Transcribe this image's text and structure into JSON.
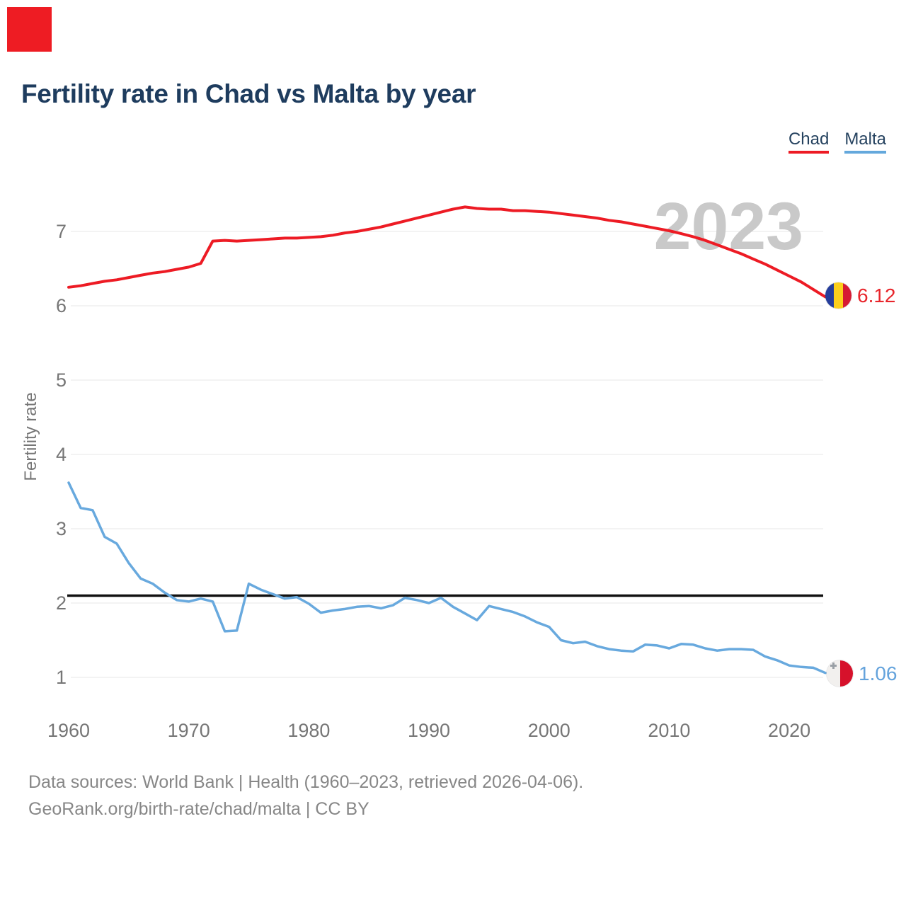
{
  "corner_marker": {
    "color": "#ee1c23"
  },
  "header": {
    "title": "Fertility rate in Chad vs Malta by year"
  },
  "legend": [
    {
      "label": "Chad",
      "color": "#ed1b24"
    },
    {
      "label": "Malta",
      "color": "#64a8dc"
    }
  ],
  "watermark": "2023",
  "axes": {
    "ylabel": "Fertility rate",
    "y_ticks": [
      1,
      2,
      3,
      4,
      5,
      6,
      7
    ],
    "x_ticks": [
      1960,
      1970,
      1980,
      1990,
      2000,
      2010,
      2020
    ]
  },
  "colors": {
    "title": "#1e3c5e",
    "grid": "#ececec",
    "tick": "#767676",
    "watermark": "#c9c9c9",
    "replacement_line": "#111111",
    "footer": "#878787"
  },
  "end_labels": {
    "chad": {
      "value": "6.12",
      "value_color": "#e8252b",
      "flag_colors": {
        "blue": "#253d9b",
        "yellow": "#fccf1b",
        "red": "#d61a33"
      }
    },
    "malta": {
      "value": "1.06",
      "value_color": "#64a3dc",
      "flag_colors": {
        "white": "#f2f0ee",
        "red": "#d6112b",
        "cross": "#9aa0a6"
      }
    }
  },
  "footer": {
    "line1": "Data sources: World Bank | Health (1960–2023, retrieved 2026-04-06).",
    "line2": "GeoRank.org/birth-rate/chad/malta | CC BY"
  },
  "chart_data": {
    "type": "line",
    "title": "Fertility rate in Chad vs Malta by year",
    "xlabel": "",
    "ylabel": "Fertility rate",
    "xlim": [
      1960,
      2023
    ],
    "ylim": [
      1,
      7
    ],
    "grid": "horizontal",
    "legend_position": "top-right",
    "reference_line": {
      "value": 2.1
    },
    "x": [
      1960,
      1961,
      1962,
      1963,
      1964,
      1965,
      1966,
      1967,
      1968,
      1969,
      1970,
      1971,
      1972,
      1973,
      1974,
      1975,
      1976,
      1977,
      1978,
      1979,
      1980,
      1981,
      1982,
      1983,
      1984,
      1985,
      1986,
      1987,
      1988,
      1989,
      1990,
      1991,
      1992,
      1993,
      1994,
      1995,
      1996,
      1997,
      1998,
      1999,
      2000,
      2001,
      2002,
      2003,
      2004,
      2005,
      2006,
      2007,
      2008,
      2009,
      2010,
      2011,
      2012,
      2013,
      2014,
      2015,
      2016,
      2017,
      2018,
      2019,
      2020,
      2021,
      2022,
      2023
    ],
    "series": [
      {
        "name": "Chad",
        "color": "#ed1b24",
        "stroke_width": 4,
        "values": [
          6.25,
          6.27,
          6.3,
          6.33,
          6.35,
          6.38,
          6.41,
          6.44,
          6.46,
          6.49,
          6.52,
          6.57,
          6.87,
          6.88,
          6.87,
          6.88,
          6.89,
          6.9,
          6.91,
          6.91,
          6.92,
          6.93,
          6.95,
          6.98,
          7.0,
          7.03,
          7.06,
          7.1,
          7.14,
          7.18,
          7.22,
          7.26,
          7.3,
          7.33,
          7.31,
          7.3,
          7.3,
          7.28,
          7.28,
          7.27,
          7.26,
          7.24,
          7.22,
          7.2,
          7.18,
          7.15,
          7.13,
          7.1,
          7.07,
          7.04,
          7.01,
          6.97,
          6.93,
          6.88,
          6.82,
          6.76,
          6.7,
          6.63,
          6.56,
          6.48,
          6.4,
          6.32,
          6.22,
          6.12
        ],
        "end_label": "6.12"
      },
      {
        "name": "Malta",
        "color": "#68a9de",
        "stroke_width": 3.5,
        "values": [
          3.62,
          3.28,
          3.25,
          2.89,
          2.8,
          2.54,
          2.33,
          2.26,
          2.14,
          2.04,
          2.02,
          2.06,
          2.02,
          1.62,
          1.63,
          2.26,
          2.18,
          2.12,
          2.06,
          2.08,
          1.99,
          1.87,
          1.9,
          1.92,
          1.95,
          1.96,
          1.93,
          1.97,
          2.07,
          2.04,
          2.0,
          2.07,
          1.95,
          1.86,
          1.77,
          1.96,
          1.92,
          1.88,
          1.82,
          1.74,
          1.68,
          1.5,
          1.46,
          1.48,
          1.42,
          1.38,
          1.36,
          1.35,
          1.44,
          1.43,
          1.39,
          1.45,
          1.44,
          1.39,
          1.36,
          1.38,
          1.38,
          1.37,
          1.28,
          1.23,
          1.16,
          1.14,
          1.13,
          1.06
        ],
        "end_label": "1.06"
      }
    ]
  }
}
